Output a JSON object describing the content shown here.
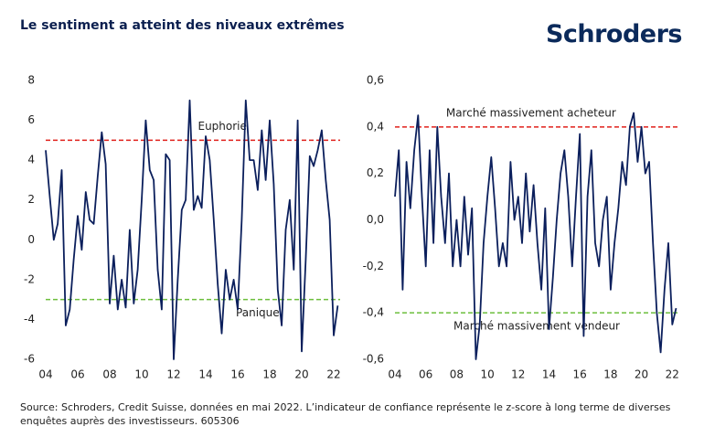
{
  "header": {
    "title": "Le sentiment a atteint des niveaux extrêmes",
    "logo": "Schroders"
  },
  "footer": "Source: Schroders, Credit Suisse, données en mai 2022. L’indicateur de confiance représente le z-score à long terme de diverses enquêtes auprès des investisseurs. 605306",
  "chart_data": [
    {
      "type": "line",
      "x": [
        4,
        4.25,
        4.5,
        4.75,
        5,
        5.25,
        5.5,
        5.75,
        6,
        6.25,
        6.5,
        6.75,
        7,
        7.25,
        7.5,
        7.75,
        8,
        8.25,
        8.5,
        8.75,
        9,
        9.25,
        9.5,
        9.75,
        10,
        10.25,
        10.5,
        10.75,
        11,
        11.25,
        11.5,
        11.75,
        12,
        12.25,
        12.5,
        12.75,
        13,
        13.25,
        13.5,
        13.75,
        14,
        14.25,
        14.5,
        14.75,
        15,
        15.25,
        15.5,
        15.75,
        16,
        16.25,
        16.5,
        16.75,
        17,
        17.25,
        17.5,
        17.75,
        18,
        18.25,
        18.5,
        18.75,
        19,
        19.25,
        19.5,
        19.75,
        20,
        20.25,
        20.5,
        20.75,
        21,
        21.25,
        21.5,
        21.75,
        22,
        22.25
      ],
      "series": [
        {
          "color": "#0b1f5c",
          "values": [
            4.5,
            2.2,
            0,
            0.8,
            3.5,
            -4.3,
            -3.5,
            -1,
            1.2,
            -0.5,
            2.4,
            1,
            0.8,
            3.2,
            5.4,
            3.8,
            -3.2,
            -0.8,
            -3.5,
            -2,
            -3.4,
            0.5,
            -3.2,
            -1.5,
            2,
            6,
            3.5,
            3,
            -1.5,
            -3.5,
            4.3,
            4,
            -6,
            -2,
            1.5,
            2,
            7,
            1.5,
            2.2,
            1.6,
            5.2,
            4,
            1,
            -2.2,
            -4.7,
            -1.5,
            -3,
            -2,
            -3.5,
            1,
            7,
            4,
            4,
            2.5,
            5.5,
            3,
            6,
            2.8,
            -2.5,
            -4.3,
            0.5,
            2,
            -1.5,
            6,
            -5.6,
            -1,
            4.2,
            3.7,
            4.5,
            5.5,
            3,
            1,
            -4.8,
            -3.3
          ]
        }
      ],
      "xlim": [
        4,
        22.4
      ],
      "xticks": [
        {
          "value": 4,
          "label": "04"
        },
        {
          "value": 6,
          "label": "06"
        },
        {
          "value": 8,
          "label": "08"
        },
        {
          "value": 10,
          "label": "10"
        },
        {
          "value": 12,
          "label": "12"
        },
        {
          "value": 14,
          "label": "14"
        },
        {
          "value": 16,
          "label": "16"
        },
        {
          "value": 18,
          "label": "18"
        },
        {
          "value": 20,
          "label": "20"
        },
        {
          "value": 22,
          "label": "22"
        }
      ],
      "ylim": [
        -6,
        8
      ],
      "yticks": [
        -6,
        -4,
        -2,
        0,
        2,
        4,
        6,
        8
      ],
      "reference_lines": [
        {
          "value": 5,
          "label": "Euphorie",
          "color": "#e0201b"
        },
        {
          "value": -3,
          "label": "Panique",
          "color": "#6cbf3c"
        }
      ]
    },
    {
      "type": "line",
      "x": [
        4,
        4.25,
        4.5,
        4.75,
        5,
        5.25,
        5.5,
        5.75,
        6,
        6.25,
        6.5,
        6.75,
        7,
        7.25,
        7.5,
        7.75,
        8,
        8.25,
        8.5,
        8.75,
        9,
        9.25,
        9.5,
        9.75,
        10,
        10.25,
        10.5,
        10.75,
        11,
        11.25,
        11.5,
        11.75,
        12,
        12.25,
        12.5,
        12.75,
        13,
        13.25,
        13.5,
        13.75,
        14,
        14.25,
        14.5,
        14.75,
        15,
        15.25,
        15.5,
        15.75,
        16,
        16.25,
        16.5,
        16.75,
        17,
        17.25,
        17.5,
        17.75,
        18,
        18.25,
        18.5,
        18.75,
        19,
        19.25,
        19.5,
        19.75,
        20,
        20.25,
        20.5,
        20.75,
        21,
        21.25,
        21.5,
        21.75,
        22,
        22.25
      ],
      "series": [
        {
          "color": "#0b1f5c",
          "values": [
            0.1,
            0.3,
            -0.3,
            0.25,
            0.05,
            0.3,
            0.45,
            0.1,
            -0.2,
            0.3,
            -0.1,
            0.4,
            0.1,
            -0.1,
            0.2,
            -0.2,
            0,
            -0.2,
            0.1,
            -0.15,
            0.05,
            -0.6,
            -0.45,
            -0.1,
            0.1,
            0.27,
            0.05,
            -0.2,
            -0.1,
            -0.2,
            0.25,
            0,
            0.1,
            -0.1,
            0.2,
            -0.05,
            0.15,
            -0.1,
            -0.3,
            0.05,
            -0.47,
            -0.25,
            0,
            0.2,
            0.3,
            0.1,
            -0.2,
            0.1,
            0.37,
            -0.5,
            0.1,
            0.3,
            -0.1,
            -0.2,
            0,
            0.1,
            -0.3,
            -0.1,
            0.05,
            0.25,
            0.15,
            0.4,
            0.46,
            0.25,
            0.4,
            0.2,
            0.25,
            -0.1,
            -0.4,
            -0.57,
            -0.3,
            -0.1,
            -0.45,
            -0.38
          ]
        }
      ],
      "xlim": [
        4,
        22.4
      ],
      "xticks": [
        {
          "value": 4,
          "label": "04"
        },
        {
          "value": 6,
          "label": "06"
        },
        {
          "value": 8,
          "label": "08"
        },
        {
          "value": 10,
          "label": "10"
        },
        {
          "value": 12,
          "label": "12"
        },
        {
          "value": 14,
          "label": "14"
        },
        {
          "value": 16,
          "label": "16"
        },
        {
          "value": 18,
          "label": "18"
        },
        {
          "value": 20,
          "label": "20"
        },
        {
          "value": 22,
          "label": "22"
        }
      ],
      "ylim": [
        -0.6,
        0.6
      ],
      "yticks": [
        {
          "value": -0.6,
          "label": "-0,6"
        },
        {
          "value": -0.4,
          "label": "-0,4"
        },
        {
          "value": -0.2,
          "label": "-0,2"
        },
        {
          "value": 0,
          "label": "0,0"
        },
        {
          "value": 0.2,
          "label": "0,2"
        },
        {
          "value": 0.4,
          "label": "0,4"
        },
        {
          "value": 0.6,
          "label": "0,6"
        }
      ],
      "reference_lines": [
        {
          "value": 0.4,
          "label": "Marché massivement acheteur",
          "color": "#e0201b"
        },
        {
          "value": -0.4,
          "label": "Marché massivement vendeur",
          "color": "#6cbf3c"
        }
      ]
    }
  ]
}
